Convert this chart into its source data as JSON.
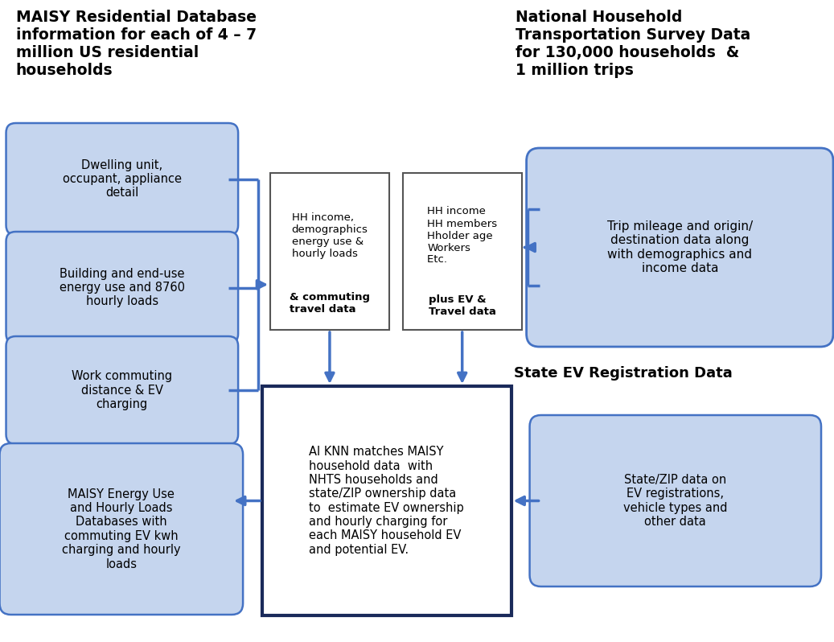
{
  "bg_color": "#ffffff",
  "left_title": "MAISY Residential Database\ninformation for each of 4 – 7\nmillion US residential\nhouseholds",
  "right_title": "National Household\nTransportation Survey Data\nfor 130,000 households  &\n1 million trips",
  "state_ev_title": "State EV Registration Data",
  "left_boxes": [
    "Dwelling unit,\noccupant, appliance\ndetail",
    "Building and end-use\nenergy use and 8760\nhourly loads",
    "Work commuting\ndistance & EV\ncharging",
    "MAISY Energy Use\nand Hourly Loads\nDatabases with\ncommuting EV kwh\ncharging and hourly\nloads"
  ],
  "cl_normal": "HH income,\ndemographics\nenergy use &\nhourly loads",
  "cl_bold": "& commuting\ntravel data",
  "cr_normal": "HH income\nHH members\nHholder age\nWorkers\nEtc. ",
  "cr_bold": "plus EV &\nTravel data",
  "right_box": "Trip mileage and origin/\ndestination data along\nwith demographics and\nincome data",
  "bottom_right_box": "State/ZIP data on\nEV registrations,\nvehicle types and\nother data",
  "center_box": "AI KNN matches MAISY\nhousehold data  with\nNHTS households and\nstate/ZIP ownership data\nto  estimate EV ownership\nand hourly charging for\neach MAISY household EV\nand potential EV.",
  "arrow_color": "#4472C4",
  "box_fill_light": "#c5d5ee",
  "box_stroke_blue": "#4472C4",
  "box_stroke_dark": "#1a2a5a"
}
